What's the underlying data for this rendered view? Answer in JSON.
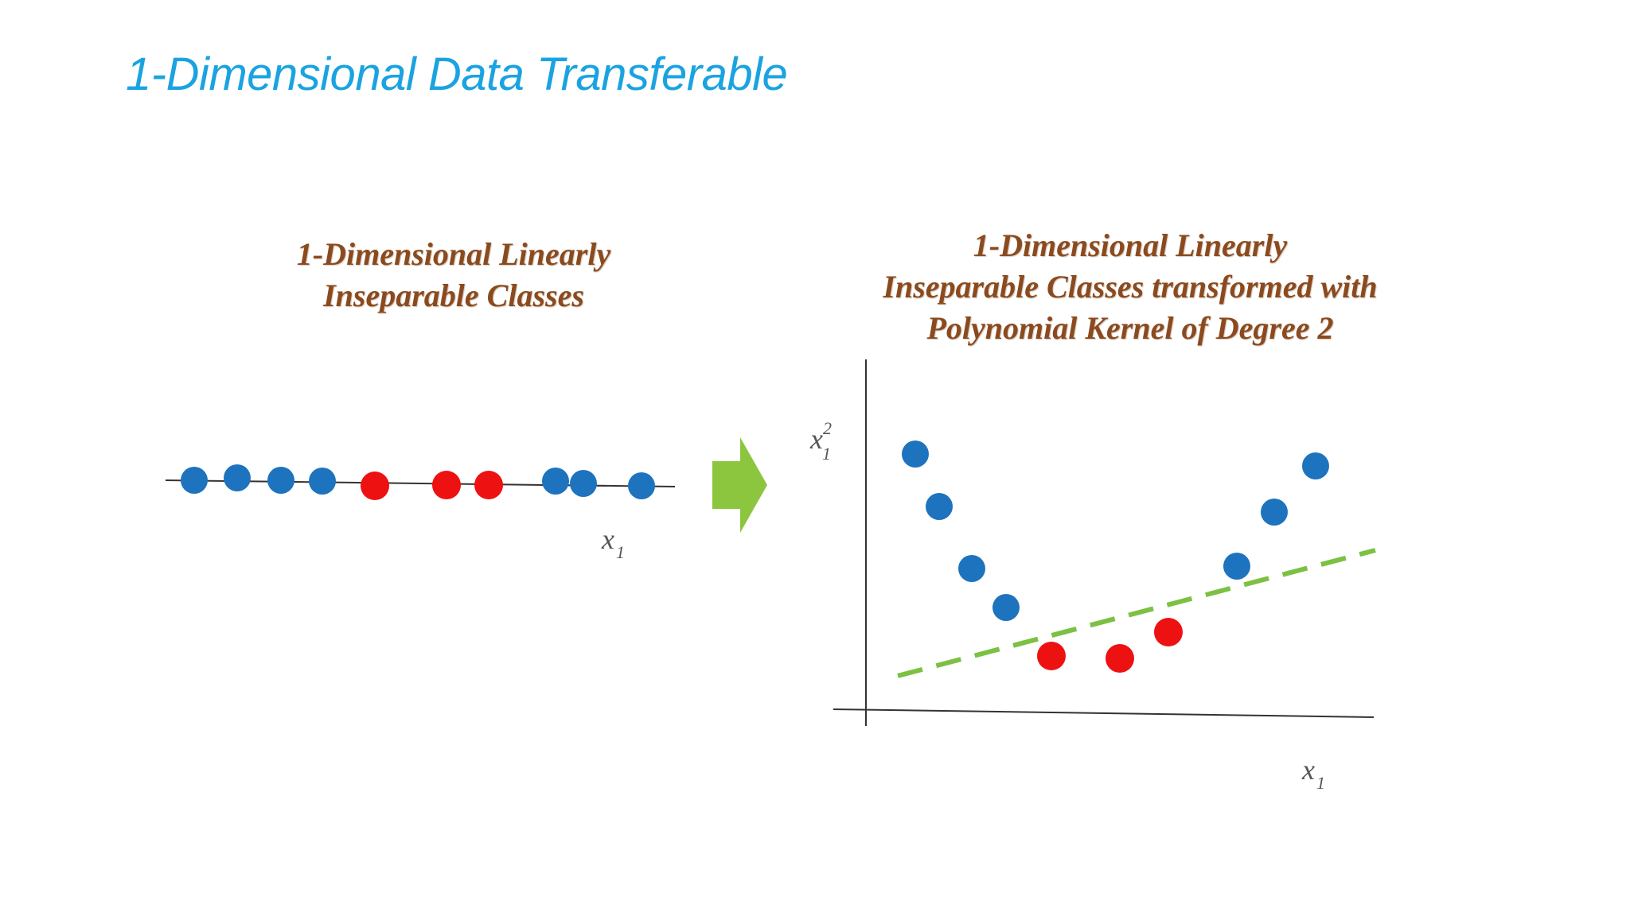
{
  "slide": {
    "title": "1-Dimensional Data Transferable"
  },
  "left_panel": {
    "caption_lines": [
      "1-Dimensional Linearly",
      "Inseparable Classes"
    ],
    "axis_label": "x",
    "axis_label_sub": "1"
  },
  "right_panel": {
    "caption_lines": [
      "1-Dimensional Linearly",
      "Inseparable Classes transformed with",
      "Polynomial Kernel of Degree 2"
    ],
    "x_axis_label": "x",
    "x_axis_label_sub": "1",
    "y_axis_label": "x",
    "y_axis_label_sup": "2",
    "y_axis_label_sub": "1"
  },
  "colors": {
    "title": "#1aa3e0",
    "caption": "#8b4a1e",
    "class_a": "#1e73be",
    "class_b": "#ee1111",
    "arrow": "#8cc63f",
    "separator": "#7cc142",
    "axis": "#333333"
  }
}
